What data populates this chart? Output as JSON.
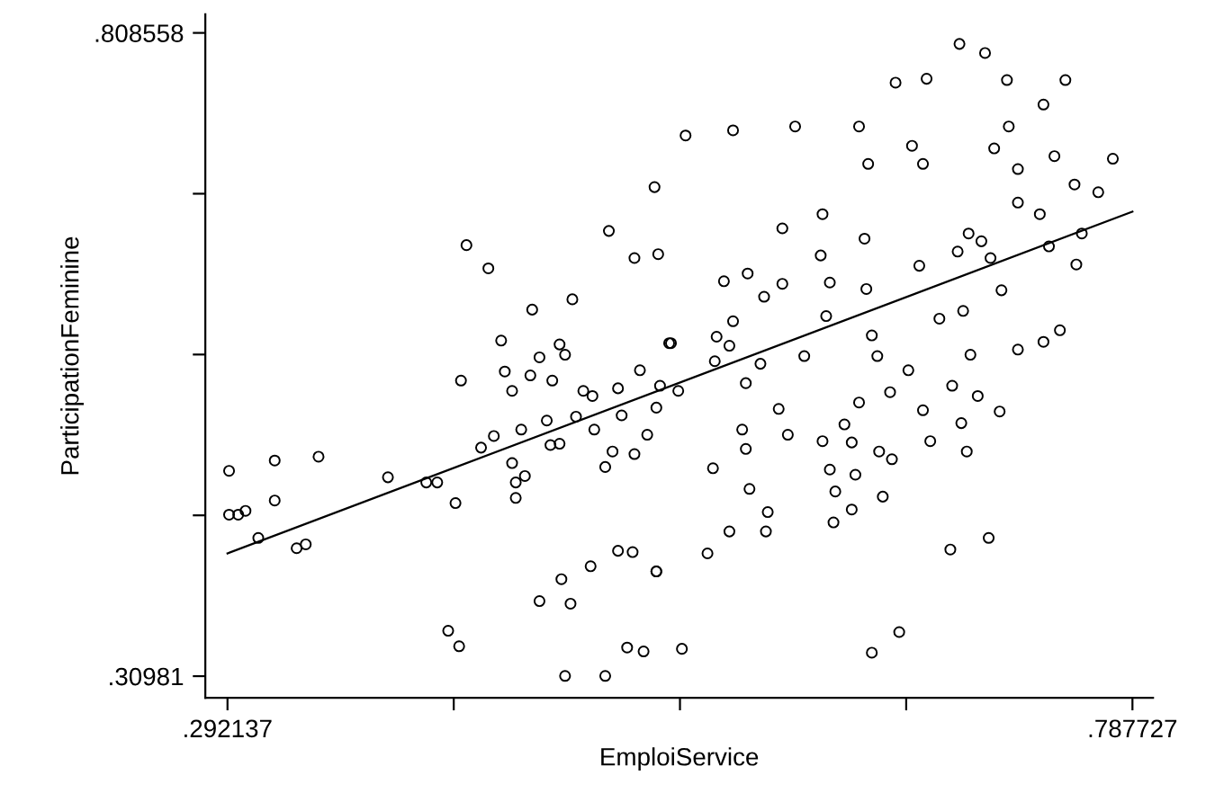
{
  "chart_data": {
    "type": "scatter",
    "xlabel": "EmploiService",
    "ylabel": "ParticipationFeminine",
    "xlim": [
      0.28,
      0.799
    ],
    "ylim": [
      0.293,
      0.823
    ],
    "xticks": [
      {
        "value": 0.292137,
        "label": ".292137"
      },
      {
        "value": 0.416035,
        "label": null
      },
      {
        "value": 0.539932,
        "label": null
      },
      {
        "value": 0.66383,
        "label": null
      },
      {
        "value": 0.787727,
        "label": ".787727"
      }
    ],
    "yticks": [
      {
        "value": 0.30981,
        "label": ".30981"
      },
      {
        "value": 0.434497,
        "label": null
      },
      {
        "value": 0.559184,
        "label": null
      },
      {
        "value": 0.683871,
        "label": null
      },
      {
        "value": 0.808558,
        "label": ".808558"
      }
    ],
    "grid": false,
    "legend": false,
    "series": [
      {
        "marker": "circle",
        "color": "#000000",
        "x": [
          0.293,
          0.293,
          0.298,
          0.302,
          0.309,
          0.318,
          0.318,
          0.33,
          0.335,
          0.342,
          0.38,
          0.401,
          0.407,
          0.417,
          0.42,
          0.413,
          0.419,
          0.431,
          0.438,
          0.442,
          0.444,
          0.448,
          0.448,
          0.45,
          0.45,
          0.455,
          0.453,
          0.458,
          0.463,
          0.467,
          0.469,
          0.474,
          0.474,
          0.477,
          0.47,
          0.463,
          0.475,
          0.48,
          0.477,
          0.491,
          0.499,
          0.506,
          0.514,
          0.527,
          0.511,
          0.52,
          0.483,
          0.487,
          0.492,
          0.493,
          0.503,
          0.499,
          0.506,
          0.508,
          0.515,
          0.522,
          0.518,
          0.527,
          0.529,
          0.534,
          0.423,
          0.435,
          0.459,
          0.481,
          0.501,
          0.515,
          0.526,
          0.528,
          0.543,
          0.569,
          0.596,
          0.603,
          0.618,
          0.638,
          0.643,
          0.658,
          0.667,
          0.675,
          0.693,
          0.707,
          0.719,
          0.739,
          0.751,
          0.72,
          0.712,
          0.673,
          0.725,
          0.745,
          0.756,
          0.777,
          0.769,
          0.725,
          0.698,
          0.737,
          0.76,
          0.742,
          0.757,
          0.716,
          0.748,
          0.739,
          0.71,
          0.692,
          0.705,
          0.671,
          0.641,
          0.642,
          0.617,
          0.622,
          0.596,
          0.577,
          0.564,
          0.586,
          0.569,
          0.56,
          0.62,
          0.645,
          0.682,
          0.695,
          0.535,
          0.559,
          0.539,
          0.567,
          0.584,
          0.576,
          0.594,
          0.608,
          0.648,
          0.574,
          0.576,
          0.599,
          0.618,
          0.63,
          0.638,
          0.655,
          0.673,
          0.694,
          0.715,
          0.703,
          0.699,
          0.725,
          0.665,
          0.689,
          0.634,
          0.636,
          0.649,
          0.656,
          0.677,
          0.697,
          0.622,
          0.625,
          0.624,
          0.634,
          0.651,
          0.588,
          0.587,
          0.567,
          0.578,
          0.558,
          0.555,
          0.527,
          0.541,
          0.645,
          0.66,
          0.688,
          0.709
        ],
        "values": [
          0.469,
          0.435,
          0.435,
          0.438,
          0.417,
          0.477,
          0.446,
          0.409,
          0.412,
          0.48,
          0.464,
          0.46,
          0.46,
          0.444,
          0.539,
          0.345,
          0.333,
          0.487,
          0.496,
          0.57,
          0.546,
          0.531,
          0.475,
          0.448,
          0.46,
          0.465,
          0.501,
          0.543,
          0.557,
          0.508,
          0.489,
          0.49,
          0.567,
          0.559,
          0.539,
          0.368,
          0.385,
          0.366,
          0.31,
          0.395,
          0.31,
          0.407,
          0.406,
          0.391,
          0.332,
          0.329,
          0.511,
          0.531,
          0.527,
          0.501,
          0.484,
          0.472,
          0.533,
          0.512,
          0.482,
          0.497,
          0.547,
          0.518,
          0.535,
          0.568,
          0.644,
          0.626,
          0.594,
          0.602,
          0.655,
          0.634,
          0.689,
          0.637,
          0.729,
          0.733,
          0.657,
          0.736,
          0.668,
          0.736,
          0.707,
          0.77,
          0.721,
          0.773,
          0.8,
          0.793,
          0.772,
          0.753,
          0.772,
          0.736,
          0.719,
          0.707,
          0.703,
          0.713,
          0.691,
          0.711,
          0.685,
          0.677,
          0.653,
          0.668,
          0.653,
          0.643,
          0.629,
          0.609,
          0.578,
          0.569,
          0.634,
          0.639,
          0.647,
          0.628,
          0.649,
          0.61,
          0.636,
          0.615,
          0.614,
          0.622,
          0.616,
          0.604,
          0.585,
          0.573,
          0.589,
          0.574,
          0.587,
          0.593,
          0.568,
          0.554,
          0.531,
          0.566,
          0.552,
          0.537,
          0.517,
          0.558,
          0.558,
          0.501,
          0.486,
          0.497,
          0.492,
          0.505,
          0.522,
          0.53,
          0.516,
          0.506,
          0.515,
          0.527,
          0.559,
          0.563,
          0.547,
          0.535,
          0.491,
          0.466,
          0.484,
          0.478,
          0.492,
          0.484,
          0.47,
          0.453,
          0.429,
          0.439,
          0.449,
          0.437,
          0.422,
          0.422,
          0.455,
          0.471,
          0.405,
          0.391,
          0.331,
          0.328,
          0.344,
          0.408,
          0.417
        ]
      },
      {
        "type": "line",
        "color": "#000000",
        "line_style": "solid",
        "marker": "none",
        "x": [
          0.292137,
          0.787727
        ],
        "values": [
          0.405,
          0.67
        ]
      }
    ]
  }
}
